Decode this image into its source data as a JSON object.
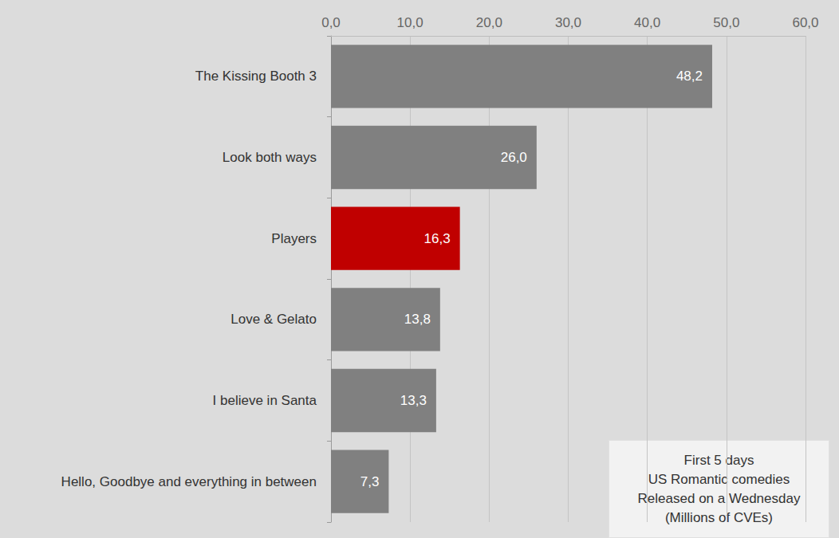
{
  "chart_data": {
    "type": "bar",
    "orientation": "horizontal",
    "categories": [
      "The Kissing Booth 3",
      "Look both ways",
      "Players",
      "Love & Gelato",
      "I believe in Santa",
      "Hello, Goodbye and everything in between"
    ],
    "values": [
      48.2,
      26.0,
      16.3,
      13.8,
      13.3,
      7.3
    ],
    "value_labels": [
      "48,2",
      "26,0",
      "16,3",
      "13,8",
      "13,3",
      "7,3"
    ],
    "colors": [
      "#808080",
      "#808080",
      "#c00000",
      "#808080",
      "#808080",
      "#808080"
    ],
    "xlim": [
      0,
      60
    ],
    "xticks": [
      {
        "value": 0,
        "label": "0,0"
      },
      {
        "value": 10,
        "label": "10,0"
      },
      {
        "value": 20,
        "label": "20,0"
      },
      {
        "value": 30,
        "label": "30,0"
      },
      {
        "value": 40,
        "label": "40,0"
      },
      {
        "value": 50,
        "label": "50,0"
      },
      {
        "value": 60,
        "label": "60,0"
      }
    ],
    "grid": true,
    "data_labels": true,
    "annotation": "First 5 days\nUS Romantic comedies\nReleased on a Wednesday\n(Millions of CVEs)"
  }
}
